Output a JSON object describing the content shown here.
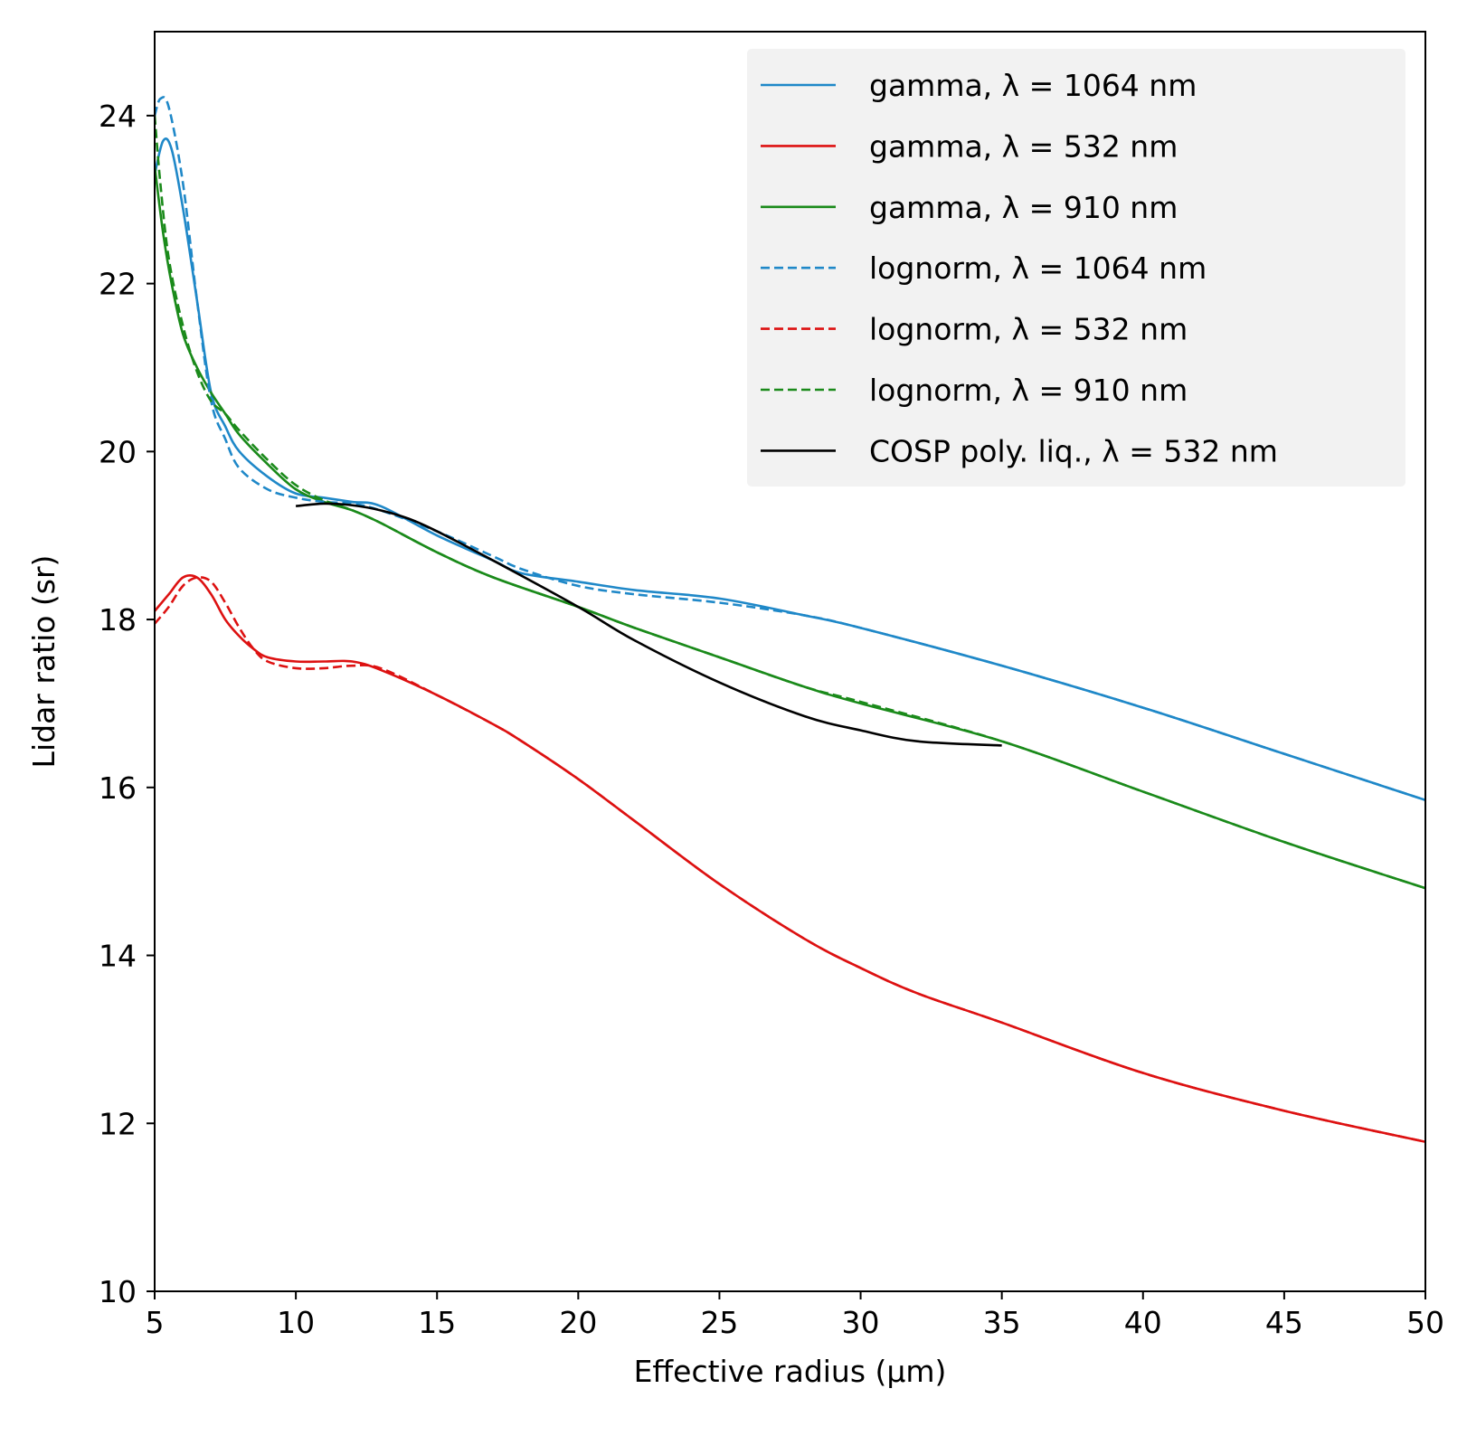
{
  "chart_data": {
    "type": "line",
    "xlabel": "Effective radius (μm)",
    "ylabel": "Lidar ratio (sr)",
    "xlim": [
      5,
      50
    ],
    "ylim": [
      10,
      25
    ],
    "xticks": [
      5,
      10,
      15,
      20,
      25,
      30,
      35,
      40,
      45,
      50
    ],
    "yticks": [
      10,
      12,
      14,
      16,
      18,
      20,
      22,
      24
    ],
    "grid": false,
    "legend_position": "top-right",
    "series": [
      {
        "name": "gamma, λ = 1064 nm",
        "color": "#1f88c8",
        "style": "solid",
        "x": [
          5.0,
          5.3,
          5.6,
          6.0,
          6.5,
          7.0,
          7.5,
          8.0,
          9.0,
          10.0,
          11.0,
          12.0,
          13.0,
          15.0,
          17.0,
          18.0,
          20.0,
          22.0,
          25.0,
          28.0,
          30.0,
          35.0,
          40.0,
          45.0,
          50.0
        ],
        "y": [
          23.3,
          23.7,
          23.6,
          22.9,
          21.8,
          20.7,
          20.3,
          20.0,
          19.7,
          19.5,
          19.45,
          19.4,
          19.35,
          19.0,
          18.7,
          18.55,
          18.45,
          18.35,
          18.25,
          18.05,
          17.9,
          17.45,
          16.95,
          16.4,
          15.85
        ]
      },
      {
        "name": "gamma, λ = 532 nm",
        "color": "#dd1111",
        "style": "solid",
        "x": [
          5.0,
          5.5,
          6.0,
          6.5,
          7.0,
          7.5,
          8.0,
          8.5,
          9.0,
          10.0,
          11.0,
          12.0,
          13.0,
          15.0,
          17.0,
          18.0,
          20.0,
          22.0,
          25.0,
          28.0,
          30.0,
          32.0,
          35.0,
          40.0,
          45.0,
          50.0
        ],
        "y": [
          18.1,
          18.3,
          18.5,
          18.5,
          18.3,
          18.0,
          17.8,
          17.65,
          17.55,
          17.5,
          17.5,
          17.5,
          17.4,
          17.1,
          16.75,
          16.55,
          16.1,
          15.6,
          14.85,
          14.2,
          13.85,
          13.55,
          13.2,
          12.6,
          12.15,
          11.78
        ]
      },
      {
        "name": "gamma, λ = 910 nm",
        "color": "#1a8a1a",
        "style": "solid",
        "x": [
          5.0,
          5.3,
          5.6,
          6.0,
          6.5,
          7.0,
          7.5,
          8.0,
          9.0,
          10.0,
          11.0,
          12.0,
          13.0,
          15.0,
          17.0,
          20.0,
          22.0,
          25.0,
          28.0,
          30.0,
          35.0,
          40.0,
          45.0,
          50.0
        ],
        "y": [
          23.4,
          22.6,
          22.0,
          21.4,
          21.0,
          20.7,
          20.45,
          20.2,
          19.85,
          19.55,
          19.4,
          19.3,
          19.15,
          18.8,
          18.5,
          18.15,
          17.9,
          17.55,
          17.2,
          17.0,
          16.55,
          15.95,
          15.35,
          14.8
        ]
      },
      {
        "name": "lognorm, λ = 1064 nm",
        "color": "#1f88c8",
        "style": "dashed",
        "x": [
          5.0,
          5.2,
          5.5,
          6.0,
          6.5,
          7.0,
          7.5,
          8.0,
          9.0,
          10.0,
          11.0,
          12.0,
          13.0,
          15.0,
          17.0,
          18.0,
          20.0,
          22.0,
          25.0,
          28.0,
          30.0,
          35.0,
          40.0,
          45.0,
          50.0
        ],
        "y": [
          24.0,
          24.2,
          24.1,
          23.2,
          21.8,
          20.6,
          20.15,
          19.8,
          19.55,
          19.45,
          19.4,
          19.38,
          19.3,
          19.05,
          18.75,
          18.6,
          18.4,
          18.3,
          18.2,
          18.05,
          17.9,
          17.45,
          16.95,
          16.4,
          15.85
        ]
      },
      {
        "name": "lognorm, λ = 532 nm",
        "color": "#dd1111",
        "style": "dashed",
        "x": [
          5.0,
          5.5,
          6.0,
          6.5,
          7.0,
          7.5,
          8.0,
          8.5,
          9.0,
          10.0,
          11.0,
          12.0,
          13.0,
          15.0,
          17.0,
          18.0,
          20.0,
          22.0,
          25.0,
          28.0,
          30.0,
          32.0,
          35.0,
          40.0,
          45.0,
          50.0
        ],
        "y": [
          17.95,
          18.15,
          18.4,
          18.5,
          18.45,
          18.2,
          17.9,
          17.65,
          17.5,
          17.42,
          17.42,
          17.45,
          17.42,
          17.1,
          16.75,
          16.55,
          16.1,
          15.6,
          14.85,
          14.2,
          13.85,
          13.55,
          13.2,
          12.6,
          12.15,
          11.78
        ]
      },
      {
        "name": "lognorm, λ = 910 nm",
        "color": "#1a8a1a",
        "style": "dashed",
        "x": [
          5.0,
          5.2,
          5.5,
          6.0,
          6.5,
          7.0,
          7.5,
          8.0,
          9.0,
          10.0,
          11.0,
          12.0,
          13.0,
          15.0,
          17.0,
          20.0,
          22.0,
          25.0,
          28.0,
          30.0,
          35.0,
          40.0,
          45.0,
          50.0
        ],
        "y": [
          24.0,
          23.2,
          22.3,
          21.5,
          20.95,
          20.6,
          20.45,
          20.25,
          19.9,
          19.6,
          19.42,
          19.3,
          19.15,
          18.8,
          18.5,
          18.15,
          17.9,
          17.55,
          17.2,
          17.02,
          16.55,
          15.95,
          15.35,
          14.8
        ]
      },
      {
        "name": "COSP poly. liq., λ = 532 nm",
        "color": "#000000",
        "style": "solid",
        "x": [
          10.0,
          11.0,
          12.0,
          13.0,
          14.0,
          15.0,
          17.0,
          20.0,
          22.0,
          25.0,
          28.0,
          30.0,
          32.0,
          35.0
        ],
        "y": [
          19.35,
          19.38,
          19.36,
          19.3,
          19.2,
          19.05,
          18.7,
          18.15,
          17.75,
          17.25,
          16.85,
          16.68,
          16.55,
          16.5
        ]
      }
    ]
  }
}
